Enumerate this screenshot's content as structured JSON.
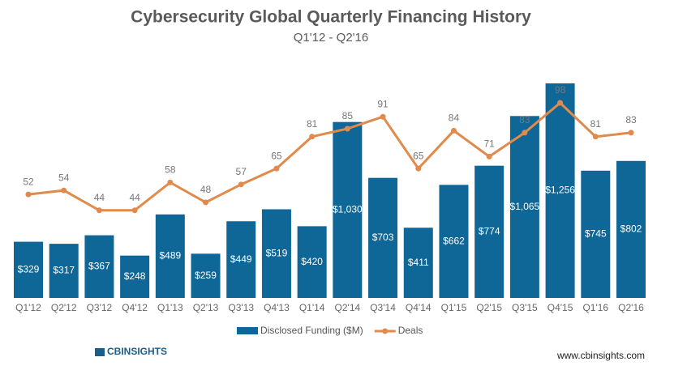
{
  "chart_data": {
    "type": "bar",
    "title": "Cybersecurity Global Quarterly Financing History",
    "subtitle": "Q1'12 - Q2'16",
    "categories": [
      "Q1'12",
      "Q2'12",
      "Q3'12",
      "Q4'12",
      "Q1'13",
      "Q2'13",
      "Q3'13",
      "Q4'13",
      "Q1'14",
      "Q2'14",
      "Q3'14",
      "Q4'14",
      "Q1'15",
      "Q2'15",
      "Q3'15",
      "Q4'15",
      "Q1'16",
      "Q2'16"
    ],
    "series": [
      {
        "name": "Disclosed Funding ($M)",
        "type": "bar",
        "color": "#0f6797",
        "values": [
          329,
          317,
          367,
          248,
          489,
          259,
          449,
          519,
          420,
          1030,
          703,
          411,
          662,
          774,
          1065,
          1256,
          745,
          802
        ],
        "value_labels": [
          "$329",
          "$317",
          "$367",
          "$248",
          "$489",
          "$259",
          "$449",
          "$519",
          "$420",
          "$1,030",
          "$703",
          "$411",
          "$662",
          "$774",
          "$1,065",
          "$1,256",
          "$745",
          "$802"
        ]
      },
      {
        "name": "Deals",
        "type": "line",
        "axis": "y2",
        "color": "#e08a4b",
        "values": [
          52,
          54,
          44,
          44,
          58,
          48,
          57,
          65,
          81,
          85,
          91,
          65,
          84,
          71,
          83,
          98,
          81,
          83
        ]
      }
    ],
    "legend": "bottom",
    "brand": "CBINSIGHTS",
    "website": "www.cbinsights.com"
  }
}
